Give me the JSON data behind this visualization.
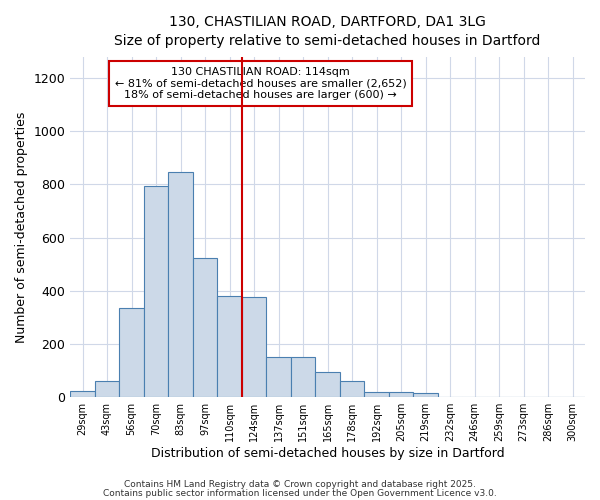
{
  "title1": "130, CHASTILIAN ROAD, DARTFORD, DA1 3LG",
  "title2": "Size of property relative to semi-detached houses in Dartford",
  "xlabel": "Distribution of semi-detached houses by size in Dartford",
  "ylabel": "Number of semi-detached properties",
  "bar_labels": [
    "29sqm",
    "43sqm",
    "56sqm",
    "70sqm",
    "83sqm",
    "97sqm",
    "110sqm",
    "124sqm",
    "137sqm",
    "151sqm",
    "165sqm",
    "178sqm",
    "192sqm",
    "205sqm",
    "219sqm",
    "232sqm",
    "246sqm",
    "259sqm",
    "273sqm",
    "286sqm",
    "300sqm"
  ],
  "bar_values": [
    25,
    60,
    335,
    795,
    845,
    525,
    380,
    375,
    150,
    150,
    95,
    60,
    20,
    20,
    15,
    0,
    0,
    0,
    0,
    0,
    0
  ],
  "bar_color": "#ccd9e8",
  "bar_edgecolor": "#4a7fb0",
  "background_color": "#ffffff",
  "grid_color": "#d0d8e8",
  "vline_x_index": 6,
  "vline_color": "#cc0000",
  "annotation_line1": "130 CHASTILIAN ROAD: 114sqm",
  "annotation_line2": "← 81% of semi-detached houses are smaller (2,652)",
  "annotation_line3": "18% of semi-detached houses are larger (600) →",
  "annotation_box_color": "#cc0000",
  "ylim": [
    0,
    1280
  ],
  "yticks": [
    0,
    200,
    400,
    600,
    800,
    1000,
    1200
  ],
  "footnote1": "Contains HM Land Registry data © Crown copyright and database right 2025.",
  "footnote2": "Contains public sector information licensed under the Open Government Licence v3.0."
}
